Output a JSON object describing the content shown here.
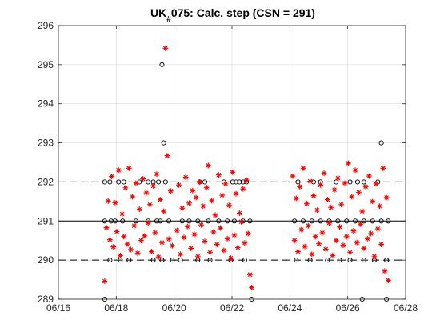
{
  "chart_data": {
    "type": "scatter",
    "title": {
      "prefix": "UK",
      "subscript": "#",
      "suffix": "075: Calc. step (CSN = 291)"
    },
    "xlabel": "",
    "ylabel": "",
    "x_unit": "days",
    "xlim": [
      "2000-06-16",
      "2000-06-28"
    ],
    "ylim": [
      289,
      296
    ],
    "x_ticks": [
      {
        "value": "2000-06-16",
        "label": "06/16"
      },
      {
        "value": "2000-06-18",
        "label": "06/18"
      },
      {
        "value": "2000-06-20",
        "label": "06/20"
      },
      {
        "value": "2000-06-22",
        "label": "06/22"
      },
      {
        "value": "2000-06-24",
        "label": "06/24"
      },
      {
        "value": "2000-06-26",
        "label": "06/26"
      },
      {
        "value": "2000-06-28",
        "label": "06/28"
      }
    ],
    "y_ticks": [
      289,
      290,
      291,
      292,
      293,
      294,
      295,
      296
    ],
    "grid": true,
    "reference_lines": [
      {
        "y": 291,
        "style": "solid",
        "color": "#000000"
      },
      {
        "y": 290,
        "style": "dashed",
        "color": "#000000"
      },
      {
        "y": 292,
        "style": "dashed",
        "color": "#000000"
      }
    ],
    "colors": {
      "stars": "#ff0000",
      "circles": "#000000"
    },
    "series": [
      {
        "marker": "star",
        "points": [
          [
            "2000-06-17 14:24",
            289.46
          ],
          [
            "2000-06-17 15:50",
            290.83
          ],
          [
            "2000-06-17 17:17",
            291.51
          ],
          [
            "2000-06-17 18:43",
            290.52
          ],
          [
            "2000-06-17 20:09",
            292.14
          ],
          [
            "2000-06-17 21:36",
            290.34
          ],
          [
            "2000-06-17 23:02",
            291.47
          ],
          [
            "2000-06-18 00:28",
            290.73
          ],
          [
            "2000-06-18 01:55",
            292.3
          ],
          [
            "2000-06-18 03:21",
            290.12
          ],
          [
            "2000-06-18 04:48",
            291.18
          ],
          [
            "2000-06-18 06:14",
            290.6
          ],
          [
            "2000-06-18 07:40",
            291.85
          ],
          [
            "2000-06-18 09:07",
            290.41
          ],
          [
            "2000-06-18 10:33",
            292.35
          ],
          [
            "2000-06-18 12:00",
            290.27
          ],
          [
            "2000-06-18 13:26",
            291.62
          ],
          [
            "2000-06-18 14:52",
            290.88
          ],
          [
            "2000-06-18 16:19",
            291.97
          ],
          [
            "2000-06-18 17:45",
            290.18
          ],
          [
            "2000-06-18 19:12",
            291.3
          ],
          [
            "2000-06-18 20:38",
            290.5
          ],
          [
            "2000-06-18 22:04",
            292.08
          ],
          [
            "2000-06-18 23:31",
            290.62
          ],
          [
            "2000-06-19 00:57",
            291.72
          ],
          [
            "2000-06-19 02:24",
            290.95
          ],
          [
            "2000-06-19 03:50",
            291.42
          ],
          [
            "2000-06-19 05:16",
            290.22
          ],
          [
            "2000-06-19 06:43",
            291.9
          ],
          [
            "2000-06-19 08:09",
            290.7
          ],
          [
            "2000-06-19 09:36",
            292.2
          ],
          [
            "2000-06-19 11:02",
            290.08
          ],
          [
            "2000-06-19 12:28",
            291.55
          ],
          [
            "2000-06-19 13:55",
            290.45
          ],
          [
            "2000-06-19 15:21",
            291.25
          ],
          [
            "2000-06-19 16:48",
            295.42
          ],
          [
            "2000-06-19 18:14",
            292.67
          ],
          [
            "2000-06-19 19:40",
            290.54
          ],
          [
            "2000-06-19 21:07",
            291.77
          ],
          [
            "2000-06-19 22:33",
            290.37
          ],
          [
            "2000-06-20 02:24",
            290.76
          ],
          [
            "2000-06-20 03:50",
            291.92
          ],
          [
            "2000-06-20 05:16",
            290.15
          ],
          [
            "2000-06-20 06:43",
            291.33
          ],
          [
            "2000-06-20 08:09",
            290.58
          ],
          [
            "2000-06-20 09:36",
            292.12
          ],
          [
            "2000-06-20 11:02",
            290.86
          ],
          [
            "2000-06-20 12:28",
            291.46
          ],
          [
            "2000-06-20 13:55",
            290.3
          ],
          [
            "2000-06-20 15:21",
            291.78
          ],
          [
            "2000-06-20 16:48",
            290.66
          ],
          [
            "2000-06-20 18:14",
            291.6
          ],
          [
            "2000-06-20 19:40",
            290.1
          ],
          [
            "2000-06-20 21:07",
            292.0
          ],
          [
            "2000-06-20 22:33",
            290.9
          ],
          [
            "2000-06-21 00:00",
            291.38
          ],
          [
            "2000-06-21 01:26",
            290.48
          ],
          [
            "2000-06-21 02:52",
            291.86
          ],
          [
            "2000-06-21 04:19",
            292.42
          ],
          [
            "2000-06-21 05:45",
            290.2
          ],
          [
            "2000-06-21 07:12",
            291.52
          ],
          [
            "2000-06-21 08:38",
            290.72
          ],
          [
            "2000-06-21 10:04",
            291.15
          ],
          [
            "2000-06-21 11:31",
            290.4
          ],
          [
            "2000-06-21 12:57",
            292.18
          ],
          [
            "2000-06-21 14:24",
            290.82
          ],
          [
            "2000-06-21 15:50",
            291.66
          ],
          [
            "2000-06-21 17:16",
            290.25
          ],
          [
            "2000-06-21 18:43",
            291.95
          ],
          [
            "2000-06-21 20:09",
            290.55
          ],
          [
            "2000-06-21 21:36",
            291.4
          ],
          [
            "2000-06-21 23:02",
            290.05
          ],
          [
            "2000-06-22 00:28",
            292.25
          ],
          [
            "2000-06-22 01:55",
            290.64
          ],
          [
            "2000-06-22 03:21",
            291.7
          ],
          [
            "2000-06-22 04:48",
            290.32
          ],
          [
            "2000-06-22 06:14",
            291.2
          ],
          [
            "2000-06-22 07:40",
            290.98
          ],
          [
            "2000-06-22 09:07",
            291.82
          ],
          [
            "2000-06-22 10:33",
            290.44
          ],
          [
            "2000-06-22 12:00",
            292.05
          ],
          [
            "2000-06-22 13:26",
            290.68
          ],
          [
            "2000-06-22 14:52",
            289.63
          ],
          [
            "2000-06-22 16:19",
            289.3
          ],
          [
            "2000-06-24 02:24",
            292.15
          ],
          [
            "2000-06-24 03:50",
            290.5
          ],
          [
            "2000-06-24 05:16",
            291.58
          ],
          [
            "2000-06-24 06:43",
            290.22
          ],
          [
            "2000-06-24 08:09",
            291.88
          ],
          [
            "2000-06-24 09:36",
            290.78
          ],
          [
            "2000-06-24 11:02",
            292.35
          ],
          [
            "2000-06-24 12:28",
            290.35
          ],
          [
            "2000-06-24 13:55",
            291.45
          ],
          [
            "2000-06-24 15:21",
            290.88
          ],
          [
            "2000-06-24 16:48",
            292.02
          ],
          [
            "2000-06-24 18:14",
            290.15
          ],
          [
            "2000-06-24 19:40",
            291.65
          ],
          [
            "2000-06-24 21:07",
            290.6
          ],
          [
            "2000-06-24 22:33",
            291.28
          ],
          [
            "2000-06-25 00:00",
            290.42
          ],
          [
            "2000-06-25 01:26",
            291.92
          ],
          [
            "2000-06-25 02:52",
            290.7
          ],
          [
            "2000-06-25 04:19",
            292.22
          ],
          [
            "2000-06-25 05:45",
            290.28
          ],
          [
            "2000-06-25 07:12",
            291.55
          ],
          [
            "2000-06-25 08:38",
            290.95
          ],
          [
            "2000-06-25 10:04",
            291.35
          ],
          [
            "2000-06-25 11:31",
            290.12
          ],
          [
            "2000-06-25 12:57",
            291.8
          ],
          [
            "2000-06-25 14:24",
            290.5
          ],
          [
            "2000-06-25 15:50",
            292.1
          ],
          [
            "2000-06-25 17:16",
            290.85
          ],
          [
            "2000-06-25 18:43",
            291.42
          ],
          [
            "2000-06-25 20:09",
            290.38
          ],
          [
            "2000-06-25 21:36",
            291.97
          ],
          [
            "2000-06-25 23:02",
            290.6
          ],
          [
            "2000-06-26 00:28",
            292.48
          ],
          [
            "2000-06-26 01:55",
            290.2
          ],
          [
            "2000-06-26 03:21",
            291.62
          ],
          [
            "2000-06-26 04:48",
            290.75
          ],
          [
            "2000-06-26 06:14",
            292.3
          ],
          [
            "2000-06-26 07:40",
            290.45
          ],
          [
            "2000-06-26 09:07",
            291.73
          ],
          [
            "2000-06-26 10:33",
            290.92
          ],
          [
            "2000-06-26 12:00",
            291.25
          ],
          [
            "2000-06-26 13:26",
            290.3
          ],
          [
            "2000-06-26 14:52",
            291.88
          ],
          [
            "2000-06-26 16:19",
            290.55
          ],
          [
            "2000-06-26 17:45",
            292.15
          ],
          [
            "2000-06-26 19:12",
            290.68
          ],
          [
            "2000-06-26 20:38",
            291.5
          ],
          [
            "2000-06-26 22:04",
            290.1
          ],
          [
            "2000-06-26 23:31",
            291.95
          ],
          [
            "2000-06-27 00:57",
            290.8
          ],
          [
            "2000-06-27 02:24",
            291.38
          ],
          [
            "2000-06-27 03:50",
            290.4
          ],
          [
            "2000-06-27 05:16",
            292.35
          ],
          [
            "2000-06-27 06:43",
            289.72
          ],
          [
            "2000-06-27 08:09",
            291.6
          ],
          [
            "2000-06-27 09:36",
            289.48
          ]
        ]
      },
      {
        "marker": "circle",
        "points": [
          [
            "2000-06-17 14:24",
            289.0
          ],
          [
            "2000-06-19 13:55",
            295.0
          ],
          [
            "2000-06-19 15:21",
            293.0
          ],
          [
            "2000-06-19 16:48",
            292.0
          ],
          [
            "2000-06-22 16:19",
            289.0
          ],
          [
            "2000-06-26 12:00",
            289.0
          ],
          [
            "2000-06-27 03:50",
            293.0
          ],
          [
            "2000-06-27 08:09",
            289.0
          ],
          [
            "2000-06-17 14:24",
            292.0
          ],
          [
            "2000-06-17 18:43",
            292.0
          ],
          [
            "2000-06-18 01:55",
            292.0
          ],
          [
            "2000-06-18 06:14",
            292.0
          ],
          [
            "2000-06-18 19:12",
            292.0
          ],
          [
            "2000-06-19 02:24",
            292.0
          ],
          [
            "2000-06-19 06:43",
            292.0
          ],
          [
            "2000-06-19 11:02",
            292.0
          ],
          [
            "2000-06-20 21:07",
            292.0
          ],
          [
            "2000-06-21 01:26",
            292.0
          ],
          [
            "2000-06-21 17:16",
            292.0
          ],
          [
            "2000-06-22 00:28",
            292.0
          ],
          [
            "2000-06-22 03:21",
            292.0
          ],
          [
            "2000-06-22 06:14",
            292.0
          ],
          [
            "2000-06-22 09:07",
            292.0
          ],
          [
            "2000-06-22 12:00",
            292.0
          ],
          [
            "2000-06-24 06:43",
            292.0
          ],
          [
            "2000-06-24 19:40",
            292.0
          ],
          [
            "2000-06-25 01:26",
            292.0
          ],
          [
            "2000-06-25 14:24",
            292.0
          ],
          [
            "2000-06-26 01:55",
            292.0
          ],
          [
            "2000-06-26 08:09",
            292.0
          ],
          [
            "2000-06-26 13:26",
            292.0
          ],
          [
            "2000-06-27 00:57",
            292.0
          ],
          [
            "2000-06-17 14:24",
            291.0
          ],
          [
            "2000-06-17 19:40",
            291.0
          ],
          [
            "2000-06-17 23:02",
            291.0
          ],
          [
            "2000-06-18 05:16",
            291.0
          ],
          [
            "2000-06-18 16:19",
            291.0
          ],
          [
            "2000-06-19 02:24",
            291.0
          ],
          [
            "2000-06-19 09:36",
            291.0
          ],
          [
            "2000-06-19 12:28",
            291.0
          ],
          [
            "2000-06-19 19:40",
            291.0
          ],
          [
            "2000-06-20 06:43",
            291.0
          ],
          [
            "2000-06-20 12:28",
            291.0
          ],
          [
            "2000-06-20 19:40",
            291.0
          ],
          [
            "2000-06-21 04:19",
            291.0
          ],
          [
            "2000-06-21 12:57",
            291.0
          ],
          [
            "2000-06-21 20:09",
            291.0
          ],
          [
            "2000-06-22 01:55",
            291.0
          ],
          [
            "2000-06-22 09:07",
            291.0
          ],
          [
            "2000-06-22 14:52",
            291.0
          ],
          [
            "2000-06-24 03:50",
            291.0
          ],
          [
            "2000-06-24 11:02",
            291.0
          ],
          [
            "2000-06-24 18:14",
            291.0
          ],
          [
            "2000-06-25 01:26",
            291.0
          ],
          [
            "2000-06-25 08:38",
            291.0
          ],
          [
            "2000-06-25 15:50",
            291.0
          ],
          [
            "2000-06-25 23:02",
            291.0
          ],
          [
            "2000-06-26 06:14",
            291.0
          ],
          [
            "2000-06-26 13:26",
            291.0
          ],
          [
            "2000-06-26 20:38",
            291.0
          ],
          [
            "2000-06-27 03:50",
            291.0
          ],
          [
            "2000-06-27 09:36",
            291.0
          ],
          [
            "2000-06-17 18:43",
            290.0
          ],
          [
            "2000-06-18 03:21",
            290.0
          ],
          [
            "2000-06-18 10:33",
            290.0
          ],
          [
            "2000-06-19 06:43",
            290.0
          ],
          [
            "2000-06-19 13:55",
            290.0
          ],
          [
            "2000-06-19 22:33",
            290.0
          ],
          [
            "2000-06-20 05:16",
            290.0
          ],
          [
            "2000-06-20 19:40",
            290.0
          ],
          [
            "2000-06-21 05:45",
            290.0
          ],
          [
            "2000-06-21 23:02",
            290.0
          ],
          [
            "2000-06-22 10:33",
            290.0
          ],
          [
            "2000-06-24 05:16",
            290.0
          ],
          [
            "2000-06-24 16:48",
            290.0
          ],
          [
            "2000-06-25 07:12",
            290.0
          ],
          [
            "2000-06-25 17:16",
            290.0
          ],
          [
            "2000-06-26 01:55",
            290.0
          ],
          [
            "2000-06-26 13:26",
            290.0
          ],
          [
            "2000-06-26 22:04",
            290.0
          ],
          [
            "2000-06-27 08:09",
            290.0
          ]
        ]
      }
    ]
  }
}
